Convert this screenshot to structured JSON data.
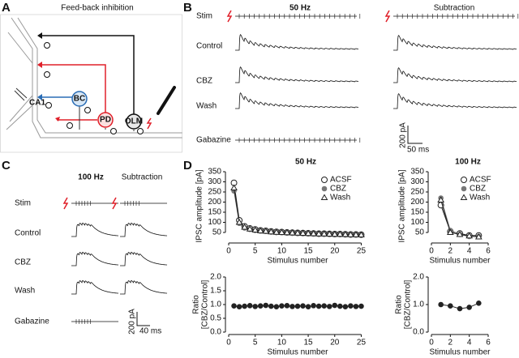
{
  "panel_labels": [
    "A",
    "B",
    "C",
    "D"
  ],
  "diagram": {
    "title": "Feed-back inhibition",
    "cells": [
      "CA1",
      "BC",
      "PD",
      "OLM"
    ]
  },
  "traces_50hz": {
    "title": "50 Hz",
    "right_title": "Subtraction",
    "rows": [
      "Stim",
      "Control",
      "CBZ",
      "Wash",
      "Gabazine"
    ],
    "scale_y": "200 pA",
    "scale_x": "50 ms"
  },
  "traces_100hz": {
    "title": "100 Hz",
    "right_title": "Subtraction",
    "rows": [
      "Stim",
      "Control",
      "CBZ",
      "Wash",
      "Gabazine"
    ],
    "scale_y": "200 pA",
    "scale_x": "40 ms"
  },
  "chart_data": [
    {
      "type": "line",
      "title": "50 Hz",
      "xlabel": "Stimulus number",
      "ylabel": "IPSC amplitude [pA]",
      "x": [
        1,
        2,
        3,
        4,
        5,
        6,
        7,
        8,
        9,
        10,
        11,
        12,
        13,
        14,
        15,
        16,
        17,
        18,
        19,
        20,
        21,
        22,
        23,
        24,
        25
      ],
      "xlim": [
        0,
        26
      ],
      "xticks": [
        0,
        5,
        10,
        15,
        20,
        25
      ],
      "ylim": [
        10,
        350
      ],
      "yticks": [
        50,
        100,
        150,
        200,
        250,
        300,
        350
      ],
      "series": [
        {
          "name": "ACSF",
          "color": "#222222",
          "marker": "circle-open",
          "values": [
            295,
            110,
            80,
            70,
            65,
            60,
            58,
            55,
            53,
            52,
            50,
            49,
            48,
            47,
            46,
            45,
            44,
            44,
            43,
            42,
            42,
            41,
            40,
            40,
            39
          ]
        },
        {
          "name": "CBZ",
          "color": "#777777",
          "marker": "circle-filled",
          "values": [
            255,
            95,
            72,
            65,
            60,
            57,
            55,
            52,
            50,
            49,
            48,
            47,
            46,
            45,
            44,
            43,
            43,
            42,
            41,
            41,
            40,
            40,
            39,
            38,
            38
          ]
        },
        {
          "name": "Wash",
          "color": "#222222",
          "marker": "triangle-open",
          "values": [
            270,
            100,
            76,
            67,
            62,
            58,
            56,
            53,
            51,
            50,
            49,
            48,
            47,
            46,
            45,
            44,
            43,
            43,
            42,
            41,
            41,
            40,
            39,
            39,
            38
          ]
        }
      ]
    },
    {
      "type": "line",
      "title": "100 Hz",
      "xlabel": "Stimulus number",
      "ylabel": "IPSC amplitude [pA]",
      "x": [
        1,
        2,
        3,
        4,
        5
      ],
      "xlim": [
        0,
        6
      ],
      "xticks": [
        0,
        2,
        4,
        6
      ],
      "ylim": [
        10,
        350
      ],
      "yticks": [
        50,
        100,
        150,
        200,
        250,
        300,
        350
      ],
      "series": [
        {
          "name": "ACSF",
          "color": "#222222",
          "marker": "circle-open",
          "values": [
            185,
            55,
            45,
            35,
            35
          ]
        },
        {
          "name": "CBZ",
          "color": "#777777",
          "marker": "circle-filled",
          "values": [
            220,
            60,
            40,
            30,
            30
          ]
        },
        {
          "name": "Wash",
          "color": "#222222",
          "marker": "triangle-open",
          "values": [
            210,
            50,
            40,
            33,
            28
          ]
        }
      ]
    },
    {
      "type": "line",
      "xlabel": "Stimulus number",
      "ylabel": [
        "Ratio",
        "[CBZ/Control]"
      ],
      "x": [
        1,
        2,
        3,
        4,
        5,
        6,
        7,
        8,
        9,
        10,
        11,
        12,
        13,
        14,
        15,
        16,
        17,
        18,
        19,
        20,
        21,
        22,
        23,
        24,
        25
      ],
      "xlim": [
        0,
        26
      ],
      "xticks": [
        0,
        5,
        10,
        15,
        20,
        25
      ],
      "ylim": [
        0,
        2
      ],
      "yticks": [
        {
          "value": 0,
          "label": "0.0"
        },
        {
          "value": 0.5,
          "label": "0.5"
        },
        {
          "value": 1,
          "label": "1.0"
        },
        {
          "value": 1.5,
          "label": "1.5"
        },
        {
          "value": 2,
          "label": "2.0"
        }
      ],
      "series": [
        {
          "color": "#222222",
          "marker": "circle-filled",
          "values": [
            0.95,
            0.92,
            0.94,
            0.96,
            0.93,
            0.95,
            0.97,
            0.94,
            0.92,
            0.95,
            0.96,
            0.93,
            0.94,
            0.95,
            0.92,
            0.96,
            0.94,
            0.95,
            0.93,
            0.97,
            0.94,
            0.92,
            0.95,
            0.93,
            0.94
          ]
        }
      ]
    },
    {
      "type": "line",
      "xlabel": "Stimulus number",
      "ylabel": [
        "Ratio",
        "[CBZ/Control]"
      ],
      "x": [
        1,
        2,
        3,
        4,
        5
      ],
      "xlim": [
        0,
        6
      ],
      "xticks": [
        0,
        2,
        4,
        6
      ],
      "ylim": [
        0,
        2
      ],
      "yticks": [
        {
          "value": 0,
          "label": "0.0"
        },
        {
          "value": 1,
          "label": "1.0"
        },
        {
          "value": 2,
          "label": "2.0"
        }
      ],
      "series": [
        {
          "color": "#222222",
          "marker": "circle-filled",
          "values": [
            1.0,
            0.95,
            0.85,
            0.9,
            1.05
          ]
        }
      ]
    }
  ]
}
